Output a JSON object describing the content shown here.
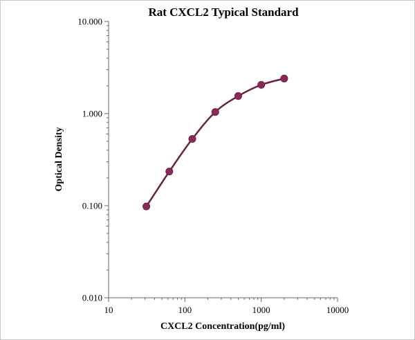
{
  "chart_data": {
    "type": "scatter",
    "title": "Rat CXCL2 Typical Standard",
    "xlabel": "CXCL2 Concentration(pg/ml)",
    "ylabel": "Optical Density",
    "x_scale": "log",
    "y_scale": "log",
    "xlim": [
      10,
      10000
    ],
    "ylim": [
      0.01,
      10
    ],
    "x_ticks": [
      "10",
      "100",
      "1000",
      "10000"
    ],
    "y_ticks": [
      "0.010",
      "0.100",
      "1.000",
      "10.000"
    ],
    "grid": false,
    "legend": "none",
    "series": [
      {
        "x": [
          31.25,
          62.5,
          125,
          250,
          500,
          1000,
          2000
        ],
        "y": [
          0.098,
          0.235,
          0.53,
          1.04,
          1.55,
          2.05,
          2.4
        ],
        "marker_color": "#8b2a5a",
        "line_color": "#6b1f3f"
      }
    ]
  }
}
